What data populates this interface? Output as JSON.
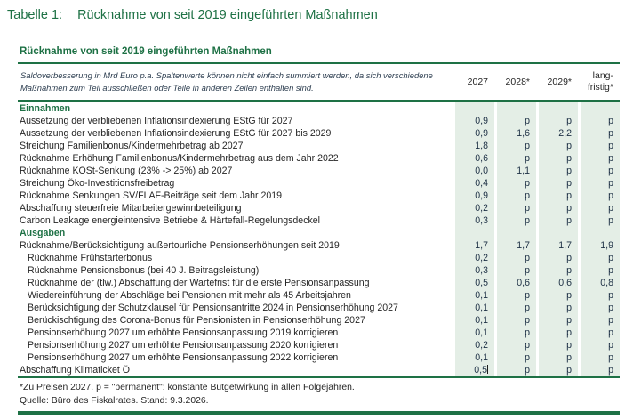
{
  "page_title": {
    "label": "Tabelle 1:",
    "text": "Rücknahme von seit 2019 eingeführten Maßnahmen"
  },
  "colors": {
    "accent_green": "#1e7145",
    "cell_band": "#e4eee6",
    "value_text": "#1d3045"
  },
  "table": {
    "subtitle": "Rücknahme von seit 2019 eingeführten Maßnahmen",
    "note": "Saldoverbesserung in Mrd Euro p.a. Spaltenwerte können nicht einfach summiert werden, da sich verschiedene Maßnahmen zum Teil ausschließen oder Teile in anderen Zeilen enthalten sind.",
    "columns": [
      "2027",
      "2028*",
      "2029*",
      "lang-\nfristig*"
    ],
    "sections": [
      {
        "header": "Einnahmen",
        "rows": [
          {
            "label": "Aussetzung der verbliebenen Inflationsindexierung EStG für 2027",
            "indent": false,
            "values": [
              "0,9",
              "p",
              "p",
              "p"
            ]
          },
          {
            "label": "Aussetzung der verbliebenen Inflationsindexierung EStG für 2027 bis 2029",
            "indent": false,
            "values": [
              "0,9",
              "1,6",
              "2,2",
              "p"
            ]
          },
          {
            "label": "Streichung Familienbonus/Kindermehrbetrag ab 2027",
            "indent": false,
            "values": [
              "1,8",
              "p",
              "p",
              "p"
            ]
          },
          {
            "label": "Rücknahme Erhöhung Familienbonus/Kindermehrbetrag aus dem Jahr 2022",
            "indent": false,
            "values": [
              "0,6",
              "p",
              "p",
              "p"
            ]
          },
          {
            "label": "Rücknahme KÖSt-Senkung (23% -> 25%) ab 2027",
            "indent": false,
            "values": [
              "0,0",
              "1,1",
              "p",
              "p"
            ]
          },
          {
            "label": "Streichung Öko-Investitionsfreibetrag",
            "indent": false,
            "values": [
              "0,4",
              "p",
              "p",
              "p"
            ]
          },
          {
            "label": "Rücknahme Senkungen SV/FLAF-Beiträge seit dem Jahr 2019",
            "indent": false,
            "values": [
              "0,9",
              "p",
              "p",
              "p"
            ]
          },
          {
            "label": "Abschaffung steuerfreie Mitarbeitergewinnbeteiligung",
            "indent": false,
            "values": [
              "0,2",
              "p",
              "p",
              "p"
            ]
          },
          {
            "label": "Carbon Leakage energieintensive Betriebe & Härtefall-Regelungsdeckel",
            "indent": false,
            "values": [
              "0,3",
              "p",
              "p",
              "p"
            ]
          }
        ]
      },
      {
        "header": "Ausgaben",
        "rows": [
          {
            "label": "Rücknahme/Berücksichtigung außertourliche Pensionserhöhungen seit 2019",
            "indent": false,
            "values": [
              "1,7",
              "1,7",
              "1,7",
              "1,9"
            ]
          },
          {
            "label": "Rücknahme Frühstarterbonus",
            "indent": true,
            "values": [
              "0,2",
              "p",
              "p",
              "p"
            ]
          },
          {
            "label": "Rücknahme Pensionsbonus (bei 40 J. Beitragsleistung)",
            "indent": true,
            "values": [
              "0,3",
              "p",
              "p",
              "p"
            ]
          },
          {
            "label": "Rücknahme der (tlw.) Abschaffung der Wartefrist für die erste Pensionsanpassung",
            "indent": true,
            "values": [
              "0,5",
              "0,6",
              "0,6",
              "0,8"
            ]
          },
          {
            "label": "Wiedereinführung der Abschläge bei Pensionen mit mehr als 45 Arbeitsjahren",
            "indent": true,
            "values": [
              "0,1",
              "p",
              "p",
              "p"
            ]
          },
          {
            "label": "Berücksichtigung der Schutzklausel für Pensionsantritte 2024 in Pensionserhöhung 2027",
            "indent": true,
            "values": [
              "0,1",
              "p",
              "p",
              "p"
            ]
          },
          {
            "label": "Berückischtigung des Corona-Bonus für Pensionisten in Pensionserhöhung 2027",
            "indent": true,
            "values": [
              "0,1",
              "p",
              "p",
              "p"
            ]
          },
          {
            "label": "Pensionserhöhung 2027 um erhöhte Pensionsanpassung 2019 korrigieren",
            "indent": true,
            "values": [
              "0,1",
              "p",
              "p",
              "p"
            ]
          },
          {
            "label": "Pensionserhöhung 2027 um erhöhte Pensionsanpassung 2020 korrigieren",
            "indent": true,
            "values": [
              "0,2",
              "p",
              "p",
              "p"
            ]
          },
          {
            "label": "Pensionserhöhung 2027 um erhöhte Pensionsanpassung 2022 korrigieren",
            "indent": true,
            "values": [
              "0,1",
              "p",
              "p",
              "p"
            ]
          },
          {
            "label": "Abschaffung Klimaticket Ö",
            "indent": false,
            "values": [
              "0,5",
              "p",
              "p",
              "p"
            ],
            "caret_after_first_value": true
          }
        ]
      }
    ],
    "footnote": "*Zu Preisen 2027. p = \"permanent\": konstante Butgetwirkung in allen Folgejahren.",
    "source": "Quelle: Büro des Fiskalrates. Stand: 9.3.2026."
  }
}
